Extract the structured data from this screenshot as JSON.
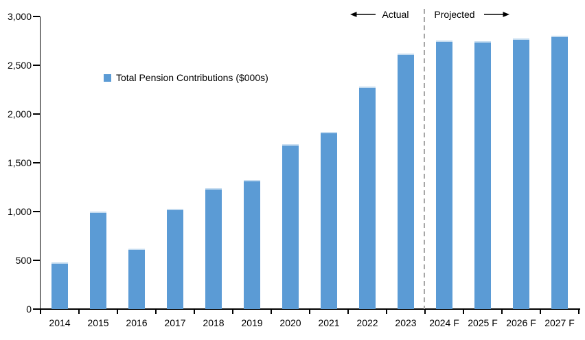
{
  "chart_data": {
    "type": "bar",
    "title": "",
    "series_name": "Total Pension Contributions ($000s)",
    "categories": [
      "2014",
      "2015",
      "2016",
      "2017",
      "2018",
      "2019",
      "2020",
      "2021",
      "2022",
      "2023",
      "2024 F",
      "2025 F",
      "2026 F",
      "2027 F"
    ],
    "values": [
      480,
      1000,
      620,
      1030,
      1240,
      1325,
      1690,
      1820,
      2280,
      2620,
      2755,
      2745,
      2775,
      2800
    ],
    "xlabel": "",
    "ylabel": "",
    "ylim": [
      0,
      3000
    ],
    "ytick_values": [
      0,
      500,
      1000,
      1500,
      2000,
      2500,
      3000
    ],
    "ytick_labels": [
      "0",
      "500",
      "1,000",
      "1,500",
      "2,000",
      "2,500",
      "3,000"
    ],
    "grid": false,
    "legend_position": "inside-upper-left",
    "annotations": {
      "actual_label": "Actual",
      "projected_label": "Projected",
      "divider_between": [
        "2023",
        "2024 F"
      ]
    },
    "colors": {
      "bar": "#5B9BD5",
      "bar_cap": "#C5DCF0",
      "axis": "#000000",
      "divider": "#A6A6A6",
      "text": "#000000"
    }
  }
}
